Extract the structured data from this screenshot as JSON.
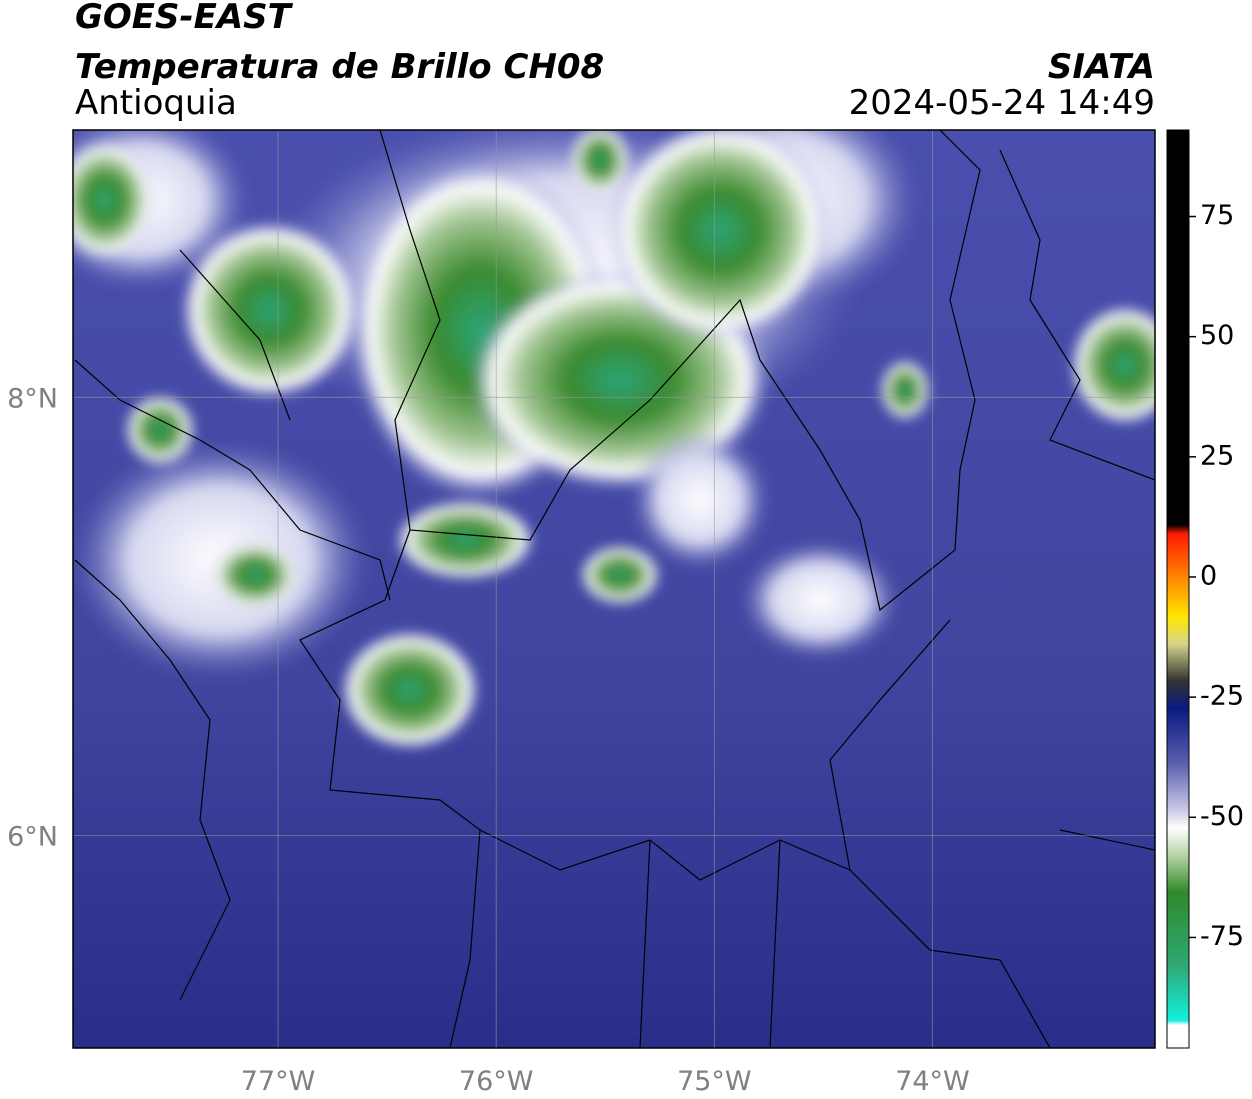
{
  "header": {
    "satellite": "GOES-EAST",
    "product": "Temperatura de Brillo CH08",
    "region": "Antioquia",
    "agency": "SIATA",
    "timestamp": "2024-05-24 14:49"
  },
  "map": {
    "xlim": [
      -77.94,
      -72.98
    ],
    "ylim": [
      5.03,
      9.22
    ],
    "xticks": [
      {
        "value": -77,
        "label": "77°W"
      },
      {
        "value": -76,
        "label": "76°W"
      },
      {
        "value": -75,
        "label": "75°W"
      },
      {
        "value": -74,
        "label": "74°W"
      }
    ],
    "yticks": [
      {
        "value": 6,
        "label": "6°N"
      },
      {
        "value": 8,
        "label": "8°N"
      }
    ]
  },
  "colorbar": {
    "clim": [
      -98,
      93
    ],
    "ticks": [
      75,
      50,
      25,
      0,
      -25,
      -50,
      -75
    ]
  }
}
